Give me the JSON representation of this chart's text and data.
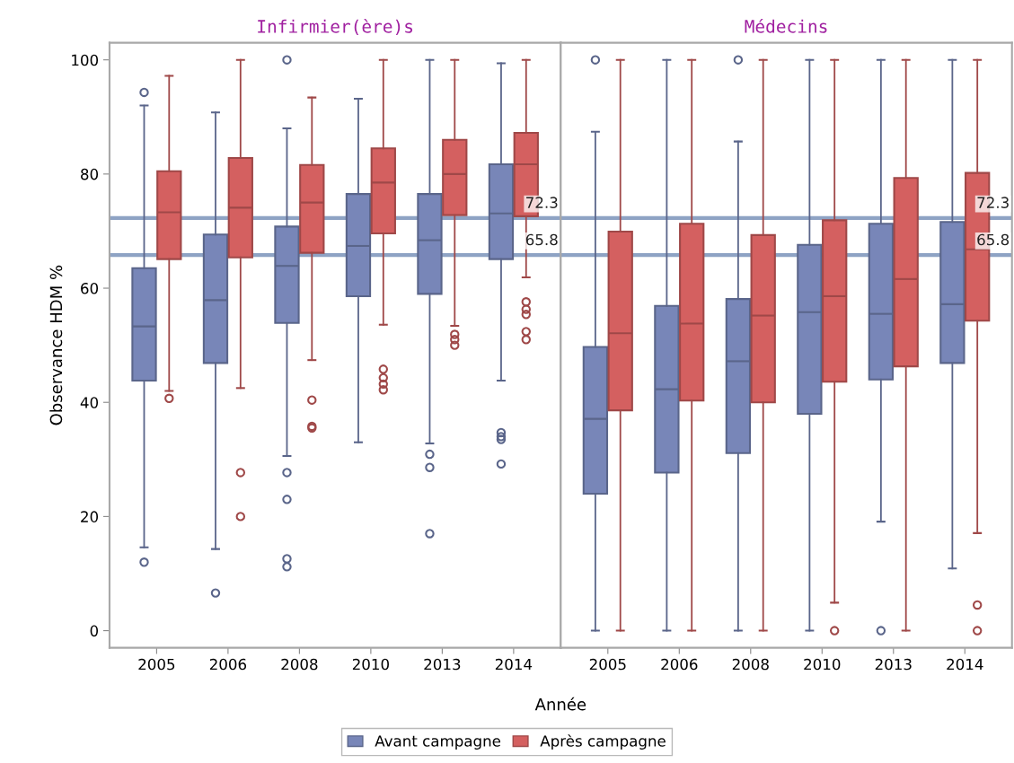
{
  "chart_data": [
    {
      "type": "box",
      "title": "Infirmier(ère)s",
      "ylabel": "Observance HDM %",
      "xlabel": "Année",
      "legend": "bottom",
      "categories": [
        "2005",
        "2006",
        "2008",
        "2010",
        "2013",
        "2014"
      ],
      "ylim": [
        -3,
        103
      ],
      "yticks": [
        0,
        20,
        40,
        60,
        80,
        100
      ],
      "ref_lines": [
        {
          "axis": "y",
          "value": 72.3,
          "label": "72.3",
          "color": "#8ea3c4"
        },
        {
          "axis": "y",
          "value": 65.8,
          "label": "65.8",
          "color": "#8ea3c4"
        }
      ],
      "series": [
        {
          "name": "Avant campagne",
          "color": "#7886b8",
          "boxes": [
            {
              "low": 14.6,
              "q1": 43.8,
              "median": 53.3,
              "q3": 63.5,
              "high": 92,
              "outliers": [
                94.3,
                12
              ]
            },
            {
              "low": 14.3,
              "q1": 46.9,
              "median": 57.9,
              "q3": 69.4,
              "high": 90.8,
              "outliers": [
                6.6
              ]
            },
            {
              "low": 30.6,
              "q1": 53.9,
              "median": 63.9,
              "q3": 70.8,
              "high": 88,
              "outliers": [
                100,
                27.7,
                23,
                12.6,
                11.2
              ]
            },
            {
              "low": 33,
              "q1": 58.6,
              "median": 67.4,
              "q3": 76.5,
              "high": 93.2
            },
            {
              "low": 32.8,
              "q1": 59,
              "median": 68.4,
              "q3": 76.5,
              "high": 100,
              "outliers": [
                30.9,
                28.6,
                17
              ]
            },
            {
              "low": 43.8,
              "q1": 65.1,
              "median": 73.1,
              "q3": 81.7,
              "high": 99.4,
              "outliers": [
                34.7,
                34,
                33.5,
                29.2
              ]
            }
          ]
        },
        {
          "name": "Après campagne",
          "color": "#d46060",
          "boxes": [
            {
              "low": 42,
              "q1": 65.1,
              "median": 73.3,
              "q3": 80.5,
              "high": 97.2,
              "outliers": [
                40.7
              ]
            },
            {
              "low": 42.5,
              "q1": 65.4,
              "median": 74.1,
              "q3": 82.8,
              "high": 100,
              "outliers": [
                27.7,
                20
              ]
            },
            {
              "low": 47.4,
              "q1": 66.2,
              "median": 75,
              "q3": 81.6,
              "high": 93.4,
              "outliers": [
                40.4,
                35.8,
                35.5
              ]
            },
            {
              "low": 53.6,
              "q1": 69.6,
              "median": 78.5,
              "q3": 84.5,
              "high": 100,
              "outliers": [
                45.8,
                44.3,
                43.2,
                42.2
              ]
            },
            {
              "low": 53.4,
              "q1": 72.8,
              "median": 80,
              "q3": 86,
              "high": 100,
              "outliers": [
                51.9,
                51,
                50
              ]
            },
            {
              "low": 61.9,
              "q1": 72.6,
              "median": 81.7,
              "q3": 87.2,
              "high": 100,
              "outliers": [
                57.6,
                56.3,
                55.4,
                52.4,
                51
              ]
            }
          ]
        }
      ]
    },
    {
      "type": "box",
      "title": "Médecins",
      "tick_labels": "x",
      "categories": [
        "2005",
        "2006",
        "2008",
        "2010",
        "2013",
        "2014"
      ],
      "ylim": [
        -3,
        103
      ],
      "yticks": [
        0,
        20,
        40,
        60,
        80,
        100
      ],
      "ref_lines": [
        {
          "axis": "y",
          "value": 72.3,
          "label": "72.3",
          "color": "#8ea3c4"
        },
        {
          "axis": "y",
          "value": 65.8,
          "label": "65.8",
          "color": "#8ea3c4"
        }
      ],
      "series": [
        {
          "color": "#7886b8",
          "boxes": [
            {
              "low": 0,
              "q1": 24,
              "median": 37.1,
              "q3": 49.7,
              "high": 87.4,
              "outliers": [
                100
              ]
            },
            {
              "low": 0,
              "q1": 27.7,
              "median": 42.3,
              "q3": 56.9,
              "high": 100
            },
            {
              "low": 0,
              "q1": 31.1,
              "median": 47.2,
              "q3": 58.1,
              "high": 85.7,
              "outliers": [
                100
              ]
            },
            {
              "low": 0,
              "q1": 38,
              "median": 55.8,
              "q3": 67.6,
              "high": 100
            },
            {
              "low": 19.1,
              "q1": 44,
              "median": 55.5,
              "q3": 71.3,
              "high": 100,
              "outliers": [
                0
              ]
            },
            {
              "low": 10.9,
              "q1": 46.9,
              "median": 57.2,
              "q3": 71.6,
              "high": 100
            }
          ]
        },
        {
          "color": "#d46060",
          "boxes": [
            {
              "low": 0,
              "q1": 38.6,
              "median": 52.1,
              "q3": 69.9,
              "high": 100
            },
            {
              "low": 0,
              "q1": 40.3,
              "median": 53.8,
              "q3": 71.3,
              "high": 100
            },
            {
              "low": 0,
              "q1": 40,
              "median": 55.2,
              "q3": 69.3,
              "high": 100
            },
            {
              "low": 4.9,
              "q1": 43.6,
              "median": 58.6,
              "q3": 71.9,
              "high": 100,
              "outliers": [
                0
              ]
            },
            {
              "low": 0,
              "q1": 46.3,
              "median": 61.6,
              "q3": 79.3,
              "high": 100
            },
            {
              "low": 17.1,
              "q1": 54.3,
              "median": 66.8,
              "q3": 80.2,
              "high": 100,
              "outliers": [
                4.5,
                0
              ]
            }
          ]
        }
      ]
    }
  ]
}
